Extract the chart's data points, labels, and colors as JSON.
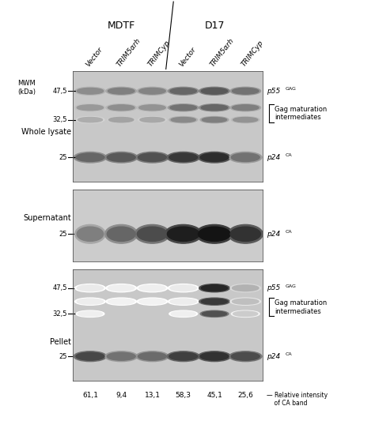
{
  "title_mdtf": "MDTF",
  "title_d17": "D17",
  "col_labels": [
    "Vector",
    "TRIM5αrh",
    "TRIMCyp",
    "Vector",
    "TRIM5αrh",
    "TRIMCyp"
  ],
  "mwm_label": "MWM\n(kDa)",
  "section_labels": [
    "Whole lysate",
    "Supernatant",
    "Pellet"
  ],
  "mw_labels": {
    "47.5": "47,5",
    "32.5": "32,5",
    "25": "25"
  },
  "bottom_values": [
    "61,1",
    "9,4",
    "13,1",
    "58,3",
    "45,1",
    "25,6"
  ],
  "bottom_label": "Relative intensity\nof CA band",
  "panel_bg_light": "#d4d4d4",
  "panel_bg_sn": "#cccccc",
  "fig_bg": "#ffffff",
  "band_color": "#202020"
}
